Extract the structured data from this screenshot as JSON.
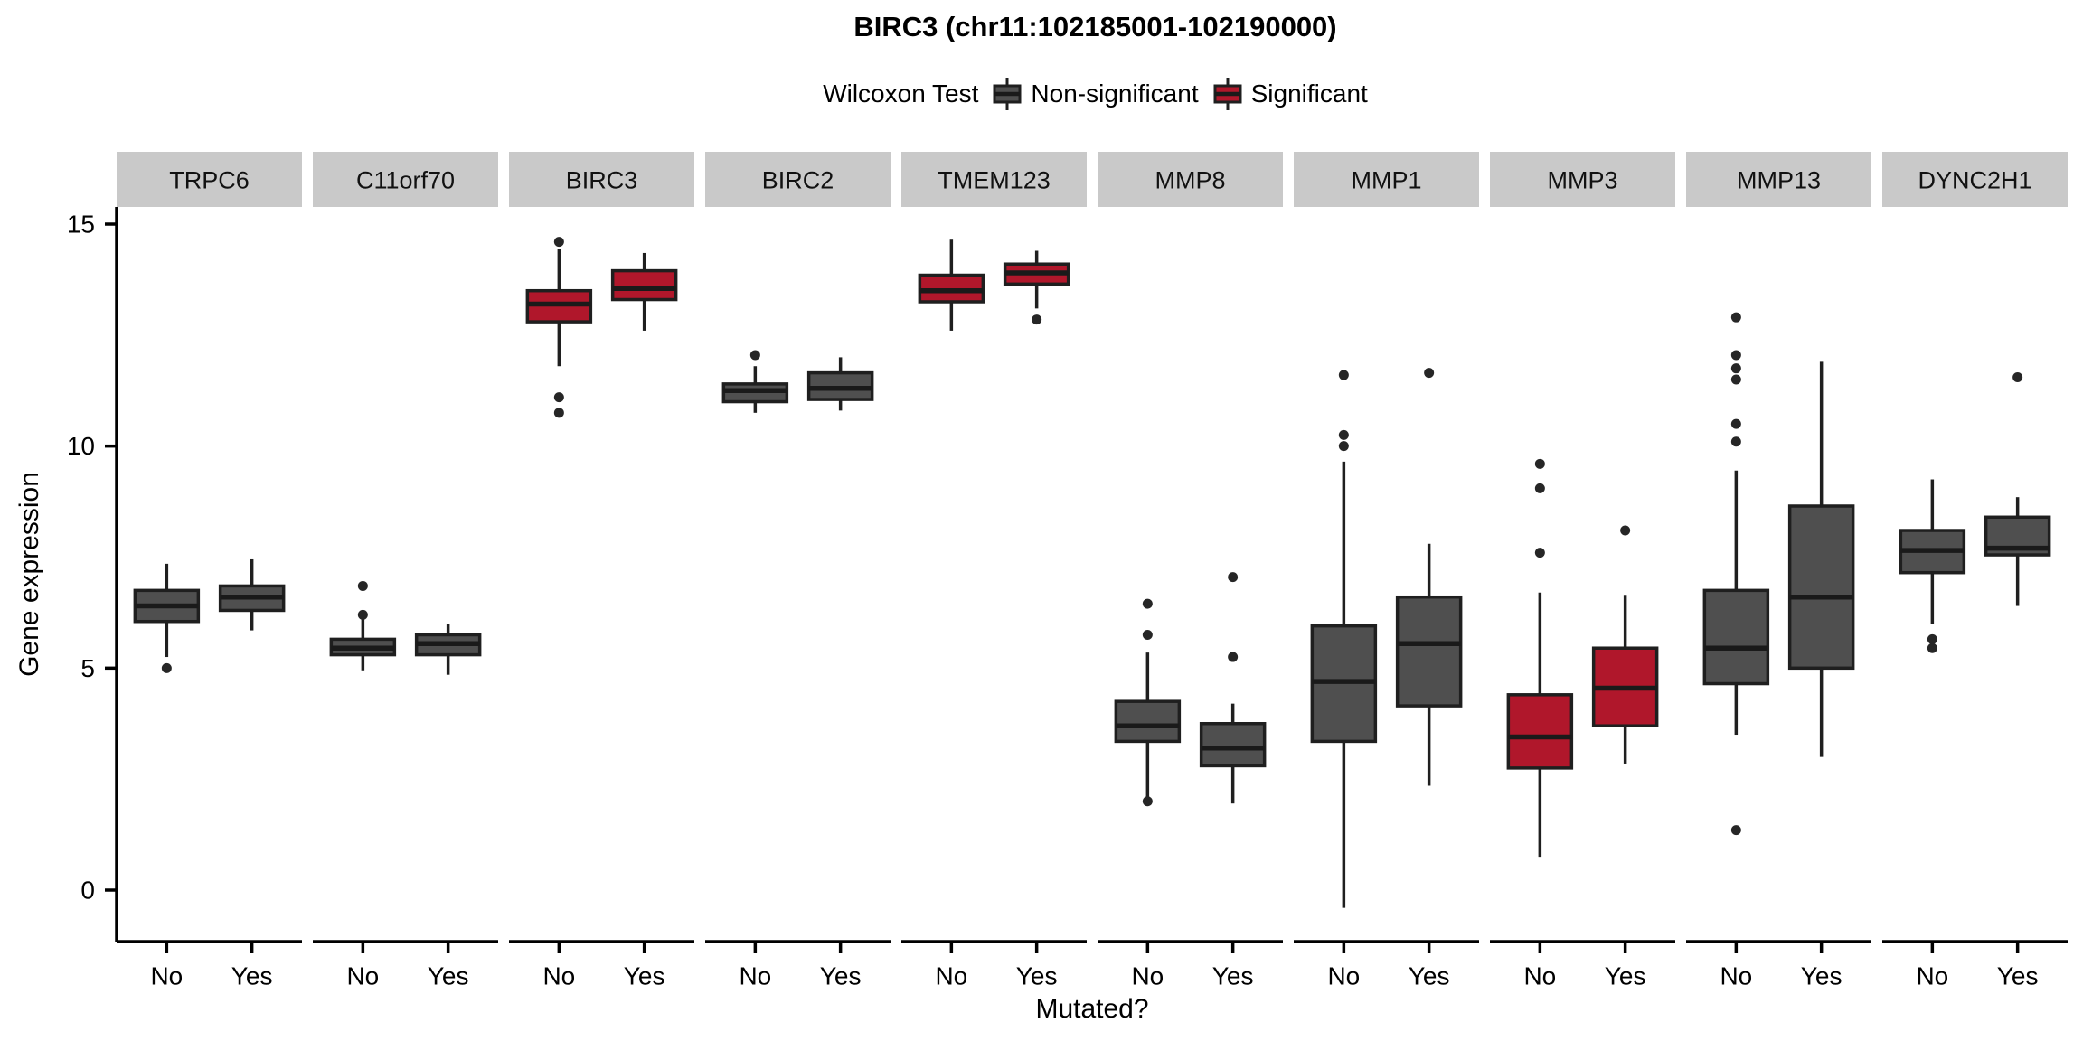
{
  "title": "BIRC3 (chr11:102185001-102190000)",
  "legend": {
    "title": "Wilcoxon Test",
    "items": [
      {
        "label": "Non-significant",
        "key": "non_significant"
      },
      {
        "label": "Significant",
        "key": "significant"
      }
    ]
  },
  "colors": {
    "non_significant": "#4F4F4F",
    "significant": "#B0172B",
    "box_border": "#1F1F1F",
    "median": "#1A1A1A",
    "whisker": "#1F1F1F",
    "outlier": "#262626",
    "strip_bg": "#C9C9C9",
    "strip_text": "#111111",
    "axis": "#000000"
  },
  "chart_data": {
    "type": "boxplot",
    "title": "BIRC3 (chr11:102185001-102190000)",
    "subtitle_legend": "Wilcoxon Test",
    "xlabel": "Mutated?",
    "ylabel": "Gene expression",
    "x_categories": [
      "No",
      "Yes"
    ],
    "y_ticks": [
      0,
      5,
      10,
      15
    ],
    "ylim": [
      -1.2,
      15.4
    ],
    "legend_position": "top",
    "grid": false,
    "facets": [
      {
        "name": "TRPC6",
        "significance": "non_significant",
        "boxes": [
          {
            "group": "No",
            "whisker_low": 5.25,
            "q1": 6.05,
            "median": 6.4,
            "q3": 6.75,
            "whisker_high": 7.35,
            "outliers": [
              5.0
            ]
          },
          {
            "group": "Yes",
            "whisker_low": 5.85,
            "q1": 6.3,
            "median": 6.6,
            "q3": 6.85,
            "whisker_high": 7.45,
            "outliers": []
          }
        ]
      },
      {
        "name": "C11orf70",
        "significance": "non_significant",
        "boxes": [
          {
            "group": "No",
            "whisker_low": 4.95,
            "q1": 5.3,
            "median": 5.45,
            "q3": 5.65,
            "whisker_high": 6.1,
            "outliers": [
              6.2,
              6.85
            ]
          },
          {
            "group": "Yes",
            "whisker_low": 4.85,
            "q1": 5.3,
            "median": 5.55,
            "q3": 5.75,
            "whisker_high": 6.0,
            "outliers": []
          }
        ]
      },
      {
        "name": "BIRC3",
        "significance": "significant",
        "boxes": [
          {
            "group": "No",
            "whisker_low": 11.8,
            "q1": 12.8,
            "median": 13.2,
            "q3": 13.5,
            "whisker_high": 14.45,
            "outliers": [
              14.6,
              11.1,
              10.75
            ]
          },
          {
            "group": "Yes",
            "whisker_low": 12.6,
            "q1": 13.3,
            "median": 13.55,
            "q3": 13.95,
            "whisker_high": 14.35,
            "outliers": []
          }
        ]
      },
      {
        "name": "BIRC2",
        "significance": "non_significant",
        "boxes": [
          {
            "group": "No",
            "whisker_low": 10.75,
            "q1": 11.0,
            "median": 11.25,
            "q3": 11.4,
            "whisker_high": 11.8,
            "outliers": [
              12.05
            ]
          },
          {
            "group": "Yes",
            "whisker_low": 10.8,
            "q1": 11.05,
            "median": 11.3,
            "q3": 11.65,
            "whisker_high": 12.0,
            "outliers": []
          }
        ]
      },
      {
        "name": "TMEM123",
        "significance": "significant",
        "boxes": [
          {
            "group": "No",
            "whisker_low": 12.6,
            "q1": 13.25,
            "median": 13.5,
            "q3": 13.85,
            "whisker_high": 14.65,
            "outliers": []
          },
          {
            "group": "Yes",
            "whisker_low": 13.1,
            "q1": 13.65,
            "median": 13.9,
            "q3": 14.1,
            "whisker_high": 14.4,
            "outliers": [
              12.85
            ]
          }
        ]
      },
      {
        "name": "MMP8",
        "significance": "non_significant",
        "boxes": [
          {
            "group": "No",
            "whisker_low": 2.05,
            "q1": 3.35,
            "median": 3.7,
            "q3": 4.25,
            "whisker_high": 5.35,
            "outliers": [
              6.45,
              5.75,
              2.0
            ]
          },
          {
            "group": "Yes",
            "whisker_low": 1.95,
            "q1": 2.8,
            "median": 3.2,
            "q3": 3.75,
            "whisker_high": 4.2,
            "outliers": [
              7.05,
              5.25
            ]
          }
        ]
      },
      {
        "name": "MMP1",
        "significance": "non_significant",
        "boxes": [
          {
            "group": "No",
            "whisker_low": -0.4,
            "q1": 3.35,
            "median": 4.7,
            "q3": 5.95,
            "whisker_high": 9.65,
            "outliers": [
              11.6,
              10.25,
              10.0
            ]
          },
          {
            "group": "Yes",
            "whisker_low": 2.35,
            "q1": 4.15,
            "median": 5.55,
            "q3": 6.6,
            "whisker_high": 7.8,
            "outliers": [
              11.65
            ]
          }
        ]
      },
      {
        "name": "MMP3",
        "significance": "significant",
        "boxes": [
          {
            "group": "No",
            "whisker_low": 0.75,
            "q1": 2.75,
            "median": 3.45,
            "q3": 4.4,
            "whisker_high": 6.7,
            "outliers": [
              9.6,
              9.05,
              7.6
            ]
          },
          {
            "group": "Yes",
            "whisker_low": 2.85,
            "q1": 3.7,
            "median": 4.55,
            "q3": 5.45,
            "whisker_high": 6.65,
            "outliers": [
              8.1
            ]
          }
        ]
      },
      {
        "name": "MMP13",
        "significance": "non_significant",
        "boxes": [
          {
            "group": "No",
            "whisker_low": 3.5,
            "q1": 4.65,
            "median": 5.45,
            "q3": 6.75,
            "whisker_high": 9.45,
            "outliers": [
              12.9,
              12.05,
              11.75,
              11.5,
              10.5,
              10.1,
              1.35
            ]
          },
          {
            "group": "Yes",
            "whisker_low": 3.0,
            "q1": 5.0,
            "median": 6.6,
            "q3": 8.65,
            "whisker_high": 11.9,
            "outliers": []
          }
        ]
      },
      {
        "name": "DYNC2H1",
        "significance": "non_significant",
        "boxes": [
          {
            "group": "No",
            "whisker_low": 6.0,
            "q1": 7.15,
            "median": 7.65,
            "q3": 8.1,
            "whisker_high": 9.25,
            "outliers": [
              5.65,
              5.45
            ]
          },
          {
            "group": "Yes",
            "whisker_low": 6.4,
            "q1": 7.55,
            "median": 7.7,
            "q3": 8.4,
            "whisker_high": 8.85,
            "outliers": [
              11.55
            ]
          }
        ]
      }
    ]
  }
}
